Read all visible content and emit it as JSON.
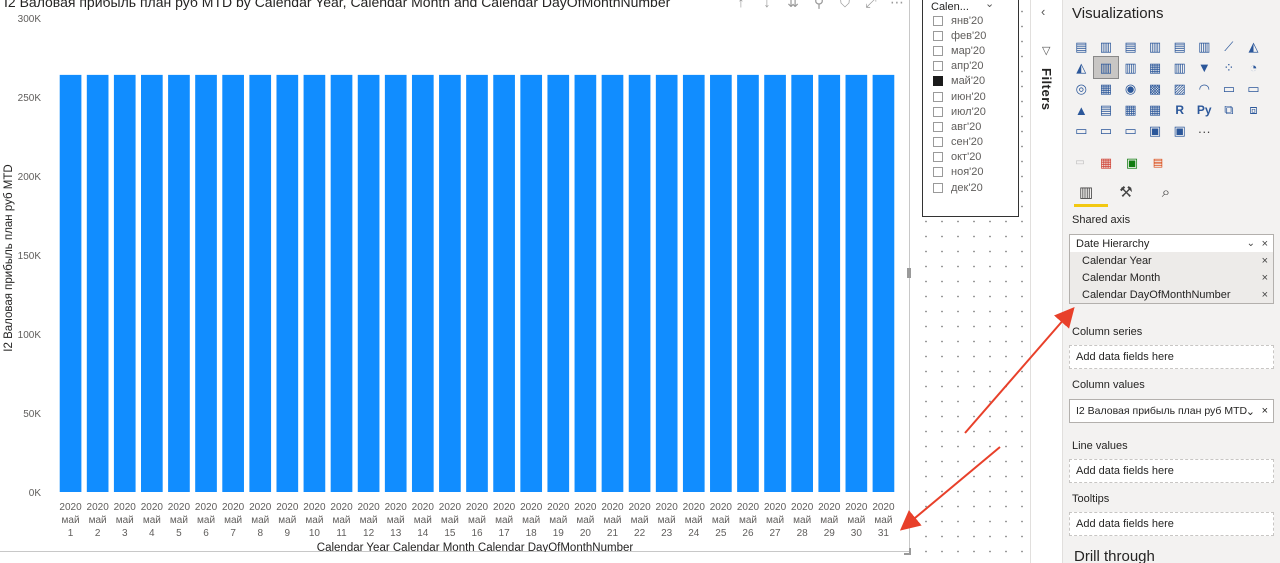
{
  "chart": {
    "title": "I2 Валовая прибыль план руб MTD by Calendar Year, Calendar Month and Calendar DayOfMonthNumber"
  },
  "chart_data": {
    "type": "bar",
    "title": "I2 Валовая прибыль план руб MTD by Calendar Year, Calendar Month and Calendar DayOfMonthNumber",
    "ylabel": "I2 Валовая прибыль план руб MTD",
    "xlabel": "Calendar Year Calendar Month Calendar DayOfMonthNumber",
    "ylim": [
      0,
      300000
    ],
    "yticks": [
      {
        "value": 0,
        "label": "0K"
      },
      {
        "value": 50000,
        "label": "50K"
      },
      {
        "value": 100000,
        "label": "100K"
      },
      {
        "value": 150000,
        "label": "150K"
      },
      {
        "value": 200000,
        "label": "200K"
      },
      {
        "value": 250000,
        "label": "250K"
      },
      {
        "value": 300000,
        "label": "300K"
      }
    ],
    "color": "#118dff",
    "grid": false,
    "categories": [
      {
        "year": "2020",
        "month": "май",
        "day": "1"
      },
      {
        "year": "2020",
        "month": "май",
        "day": "2"
      },
      {
        "year": "2020",
        "month": "май",
        "day": "3"
      },
      {
        "year": "2020",
        "month": "май",
        "day": "4"
      },
      {
        "year": "2020",
        "month": "май",
        "day": "5"
      },
      {
        "year": "2020",
        "month": "май",
        "day": "6"
      },
      {
        "year": "2020",
        "month": "май",
        "day": "7"
      },
      {
        "year": "2020",
        "month": "май",
        "day": "8"
      },
      {
        "year": "2020",
        "month": "май",
        "day": "9"
      },
      {
        "year": "2020",
        "month": "май",
        "day": "10"
      },
      {
        "year": "2020",
        "month": "май",
        "day": "11"
      },
      {
        "year": "2020",
        "month": "май",
        "day": "12"
      },
      {
        "year": "2020",
        "month": "май",
        "day": "13"
      },
      {
        "year": "2020",
        "month": "май",
        "day": "14"
      },
      {
        "year": "2020",
        "month": "май",
        "day": "15"
      },
      {
        "year": "2020",
        "month": "май",
        "day": "16"
      },
      {
        "year": "2020",
        "month": "май",
        "day": "17"
      },
      {
        "year": "2020",
        "month": "май",
        "day": "18"
      },
      {
        "year": "2020",
        "month": "май",
        "day": "19"
      },
      {
        "year": "2020",
        "month": "май",
        "day": "20"
      },
      {
        "year": "2020",
        "month": "май",
        "day": "21"
      },
      {
        "year": "2020",
        "month": "май",
        "day": "22"
      },
      {
        "year": "2020",
        "month": "май",
        "day": "23"
      },
      {
        "year": "2020",
        "month": "май",
        "day": "24"
      },
      {
        "year": "2020",
        "month": "май",
        "day": "25"
      },
      {
        "year": "2020",
        "month": "май",
        "day": "26"
      },
      {
        "year": "2020",
        "month": "май",
        "day": "27"
      },
      {
        "year": "2020",
        "month": "май",
        "day": "28"
      },
      {
        "year": "2020",
        "month": "май",
        "day": "29"
      },
      {
        "year": "2020",
        "month": "май",
        "day": "30"
      },
      {
        "year": "2020",
        "month": "май",
        "day": "31"
      }
    ],
    "values": [
      264000,
      264000,
      264000,
      264000,
      264000,
      264000,
      264000,
      264000,
      264000,
      264000,
      264000,
      264000,
      264000,
      264000,
      264000,
      264000,
      264000,
      264000,
      264000,
      264000,
      264000,
      264000,
      264000,
      264000,
      264000,
      264000,
      264000,
      264000,
      264000,
      264000,
      264000
    ]
  },
  "slicer": {
    "header": "Calen...",
    "items": [
      {
        "label": "янв'20",
        "checked": false
      },
      {
        "label": "фев'20",
        "checked": false
      },
      {
        "label": "мар'20",
        "checked": false
      },
      {
        "label": "апр'20",
        "checked": false
      },
      {
        "label": "май'20",
        "checked": true
      },
      {
        "label": "июн'20",
        "checked": false
      },
      {
        "label": "июл'20",
        "checked": false
      },
      {
        "label": "авг'20",
        "checked": false
      },
      {
        "label": "сен'20",
        "checked": false
      },
      {
        "label": "окт'20",
        "checked": false
      },
      {
        "label": "ноя'20",
        "checked": false
      },
      {
        "label": "дек'20",
        "checked": false
      }
    ]
  },
  "filters": {
    "label": "Filters"
  },
  "viz": {
    "title": "Visualizations",
    "icons": [
      "stacked-bar",
      "stacked-column",
      "clustered-bar",
      "clustered-column",
      "100-bar",
      "100-column",
      "line",
      "area",
      "stacked-area",
      "line-clustered-column",
      "line-stacked-column",
      "ribbon",
      "waterfall",
      "funnel",
      "scatter",
      "pie",
      "donut",
      "treemap",
      "map",
      "filled-map",
      "shape-map",
      "gauge",
      "card",
      "multi-row-card",
      "kpi",
      "slicer",
      "table",
      "matrix",
      "r-visual",
      "python-visual",
      "key-influencers",
      "decomposition-tree",
      "qa",
      "smart-narrative",
      "paginated",
      "power-apps",
      "power-automate",
      "more"
    ],
    "icon_glyphs": {
      "r-visual": "R",
      "python-visual": "Py",
      "more": "···"
    },
    "selected_icon": "line-clustered-column",
    "shared_axis_label": "Shared axis",
    "shared_axis": {
      "hierarchy": "Date Hierarchy",
      "fields": [
        "Calendar Year",
        "Calendar Month",
        "Calendar DayOfMonthNumber"
      ]
    },
    "column_series_label": "Column series",
    "column_series_placeholder": "Add data fields here",
    "column_values_label": "Column values",
    "column_values_field": "I2 Валовая прибыль план руб MTD",
    "line_values_label": "Line values",
    "line_values_placeholder": "Add data fields here",
    "tooltips_label": "Tooltips",
    "tooltips_placeholder": "Add data fields here",
    "drill_through_label": "Drill through"
  },
  "colors": {
    "bar": "#118dff",
    "arrow": "#e8402a",
    "accent": "#f2c811"
  }
}
